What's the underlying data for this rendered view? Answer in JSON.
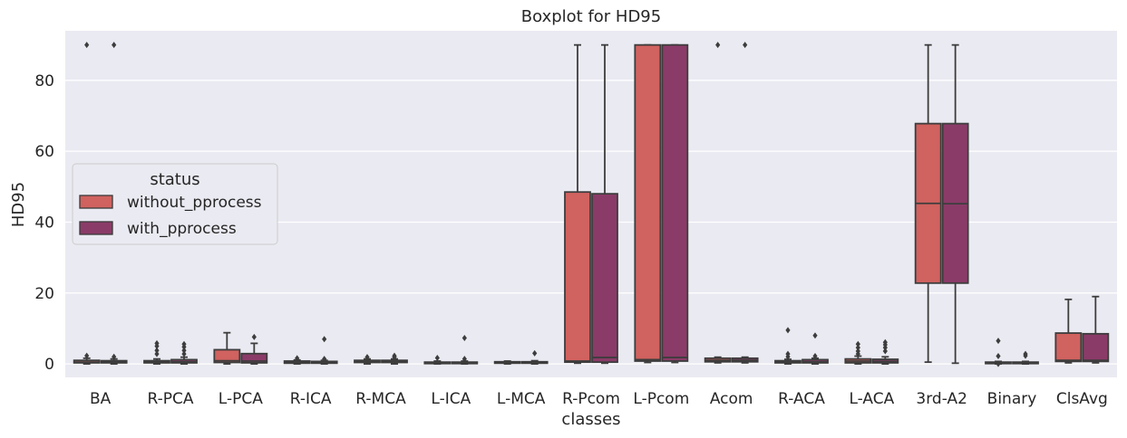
{
  "chart_data": {
    "type": "boxplot",
    "title": "Boxplot for HD95",
    "xlabel": "classes",
    "ylabel": "HD95",
    "ylim": [
      -3.8,
      94
    ],
    "yticks": [
      0,
      20,
      40,
      60,
      80
    ],
    "categories": [
      "BA",
      "R-PCA",
      "L-PCA",
      "R-ICA",
      "R-MCA",
      "L-ICA",
      "L-MCA",
      "R-Pcom",
      "L-Pcom",
      "Acom",
      "R-ACA",
      "L-ACA",
      "3rd-A2",
      "Binary",
      "ClsAvg"
    ],
    "legend": {
      "title": "status",
      "position": "center-left"
    },
    "series": [
      {
        "name": "without_pprocess",
        "color": "#D0625F",
        "boxes": [
          {
            "min": 0,
            "q1": 0.3,
            "median": 0.5,
            "q3": 1.0,
            "max": 1.6,
            "outliers": [
              2.3,
              90
            ]
          },
          {
            "min": 0,
            "q1": 0.3,
            "median": 0.5,
            "q3": 0.9,
            "max": 1.4,
            "outliers": [
              2.8,
              3.8,
              5.0,
              5.8
            ]
          },
          {
            "min": 0,
            "q1": 0.4,
            "median": 0.9,
            "q3": 4.0,
            "max": 8.8,
            "outliers": []
          },
          {
            "min": 0,
            "q1": 0.2,
            "median": 0.5,
            "q3": 0.8,
            "max": 1.1,
            "outliers": [
              1.6
            ]
          },
          {
            "min": 0,
            "q1": 0.4,
            "median": 0.7,
            "q3": 1.0,
            "max": 1.4,
            "outliers": [
              1.9
            ]
          },
          {
            "min": 0,
            "q1": 0.1,
            "median": 0.3,
            "q3": 0.5,
            "max": 0.8,
            "outliers": [
              1.7
            ]
          },
          {
            "min": 0,
            "q1": 0.2,
            "median": 0.4,
            "q3": 0.6,
            "max": 0.8,
            "outliers": []
          },
          {
            "min": 0.2,
            "q1": 0.5,
            "median": 0.8,
            "q3": 48.5,
            "max": 90,
            "outliers": []
          },
          {
            "min": 0.4,
            "q1": 0.8,
            "median": 1.2,
            "q3": 90,
            "max": 90,
            "outliers": []
          },
          {
            "min": 0.3,
            "q1": 0.6,
            "median": 1.0,
            "q3": 1.6,
            "max": 1.9,
            "outliers": [
              90
            ]
          },
          {
            "min": 0,
            "q1": 0.3,
            "median": 0.6,
            "q3": 0.9,
            "max": 1.3,
            "outliers": [
              2.0,
              2.8,
              9.5
            ]
          },
          {
            "min": 0,
            "q1": 0.3,
            "median": 0.8,
            "q3": 1.4,
            "max": 2.2,
            "outliers": [
              2.8,
              3.6,
              4.6,
              5.6
            ]
          },
          {
            "min": 0.5,
            "q1": 22.8,
            "median": 45.3,
            "q3": 67.8,
            "max": 90,
            "outliers": []
          },
          {
            "min": 0,
            "q1": 0.1,
            "median": 0.3,
            "q3": 0.5,
            "max": 0.7,
            "outliers": [
              2.2,
              6.5,
              0
            ]
          },
          {
            "min": 0.3,
            "q1": 0.7,
            "median": 1.0,
            "q3": 8.7,
            "max": 18.2,
            "outliers": []
          }
        ]
      },
      {
        "name": "with_pprocess",
        "color": "#8B3B68",
        "boxes": [
          {
            "min": 0,
            "q1": 0.3,
            "median": 0.5,
            "q3": 0.9,
            "max": 1.4,
            "outliers": [
              2.0,
              90
            ]
          },
          {
            "min": 0,
            "q1": 0.3,
            "median": 0.6,
            "q3": 1.2,
            "max": 1.9,
            "outliers": [
              2.8,
              3.8,
              4.8,
              5.6
            ]
          },
          {
            "min": 0,
            "q1": 0.3,
            "median": 0.8,
            "q3": 2.9,
            "max": 5.8,
            "outliers": [
              7.6
            ]
          },
          {
            "min": 0,
            "q1": 0.2,
            "median": 0.4,
            "q3": 0.7,
            "max": 1.0,
            "outliers": [
              1.4,
              7.0
            ]
          },
          {
            "min": 0,
            "q1": 0.4,
            "median": 0.7,
            "q3": 1.0,
            "max": 1.4,
            "outliers": [
              1.9,
              2.3
            ]
          },
          {
            "min": 0,
            "q1": 0.1,
            "median": 0.3,
            "q3": 0.5,
            "max": 0.8,
            "outliers": [
              1.4,
              7.3
            ]
          },
          {
            "min": 0,
            "q1": 0.2,
            "median": 0.4,
            "q3": 0.6,
            "max": 0.9,
            "outliers": [
              3.0
            ]
          },
          {
            "min": 0.2,
            "q1": 0.5,
            "median": 1.8,
            "q3": 48.0,
            "max": 90,
            "outliers": []
          },
          {
            "min": 0.4,
            "q1": 0.8,
            "median": 1.8,
            "q3": 90,
            "max": 90,
            "outliers": []
          },
          {
            "min": 0.3,
            "q1": 0.6,
            "median": 1.0,
            "q3": 1.6,
            "max": 1.9,
            "outliers": [
              90
            ]
          },
          {
            "min": 0,
            "q1": 0.3,
            "median": 0.6,
            "q3": 1.2,
            "max": 1.6,
            "outliers": [
              2.2,
              8.0
            ]
          },
          {
            "min": 0,
            "q1": 0.3,
            "median": 0.7,
            "q3": 1.3,
            "max": 2.0,
            "outliers": [
              3.6,
              4.6,
              5.4,
              6.1
            ]
          },
          {
            "min": 0.2,
            "q1": 22.8,
            "median": 45.2,
            "q3": 67.8,
            "max": 90,
            "outliers": []
          },
          {
            "min": 0,
            "q1": 0.1,
            "median": 0.3,
            "q3": 0.5,
            "max": 0.7,
            "outliers": [
              2.3,
              2.8
            ]
          },
          {
            "min": 0.3,
            "q1": 0.7,
            "median": 1.0,
            "q3": 8.5,
            "max": 19.0,
            "outliers": []
          }
        ]
      }
    ]
  }
}
